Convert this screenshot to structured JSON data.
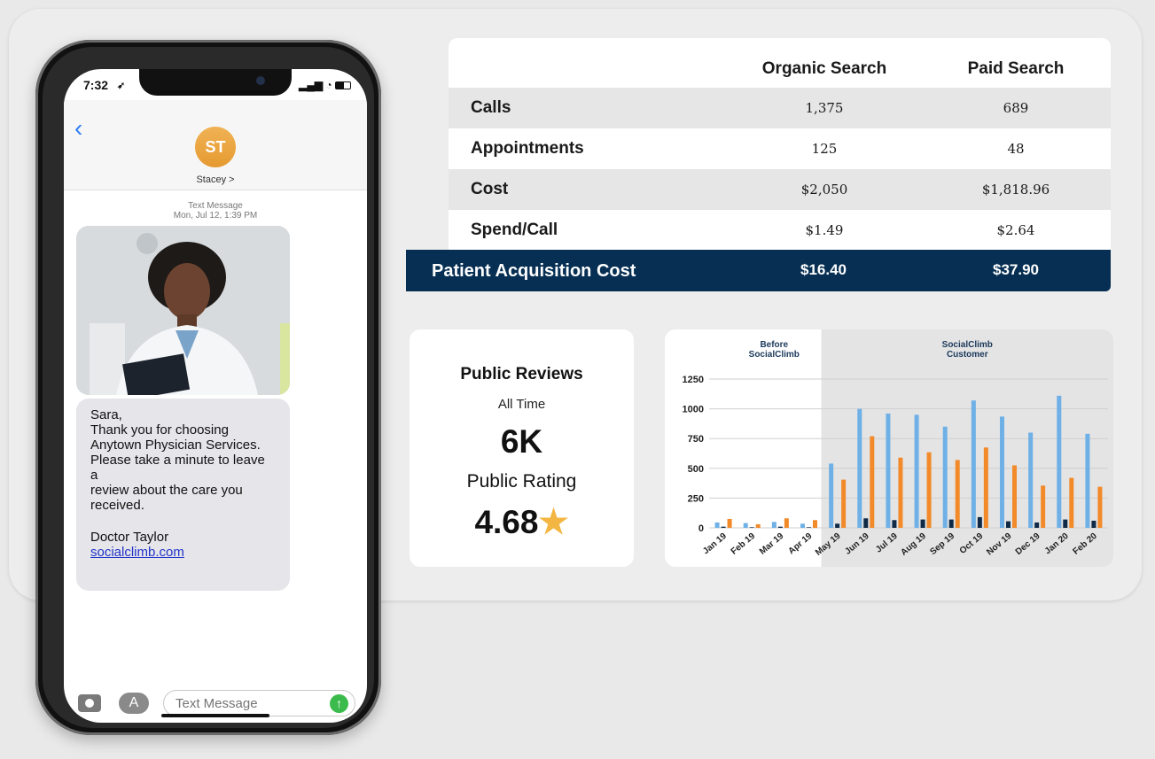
{
  "table": {
    "headers": [
      "",
      "Organic Search",
      "Paid Search"
    ],
    "rows": [
      {
        "label": "Calls",
        "organic": "1,375",
        "paid": "689"
      },
      {
        "label": "Appointments",
        "organic": "125",
        "paid": "48"
      },
      {
        "label": "Cost",
        "organic": "$2,050",
        "paid": "$1,818.96"
      },
      {
        "label": "Spend/Call",
        "organic": "$1.49",
        "paid": "$2.64"
      }
    ],
    "total": {
      "label": "Patient Acquisition Cost",
      "organic": "$16.40",
      "paid": "$37.90"
    }
  },
  "reviews": {
    "title": "Public Reviews",
    "subtitle": "All Time",
    "count": "6K",
    "rating_label": "Public Rating",
    "rating": "4.68"
  },
  "phone": {
    "time": "7:32",
    "contact_initials": "ST",
    "contact_name": "Stacey >",
    "timestamp_line1": "Text Message",
    "timestamp_line2": "Mon, Jul 12, 1:39 PM",
    "message": {
      "greeting": "Sara,",
      "line1": "Thank you for choosing",
      "line2": "Anytown Physician Services.",
      "line3": "Please take a minute to leave a",
      "line4": "review about the care you",
      "line5": "received.",
      "signature": "Doctor Taylor",
      "link": "socialclimb.com"
    },
    "input_placeholder": "Text Message"
  },
  "chart_data": {
    "type": "bar",
    "region_labels": {
      "before": [
        "Before",
        "SocialClimb"
      ],
      "after": [
        "SocialClimb",
        "Customer"
      ]
    },
    "categories": [
      "Jan 19",
      "Feb 19",
      "Mar 19",
      "Apr 19",
      "May 19",
      "Jun 19",
      "Jul 19",
      "Aug 19",
      "Sep 19",
      "Oct 19",
      "Nov 19",
      "Dec 19",
      "Jan 20",
      "Feb 20"
    ],
    "series": [
      {
        "color": "#6fb0e6",
        "values": [
          45,
          40,
          50,
          35,
          540,
          1000,
          960,
          950,
          850,
          1070,
          935,
          800,
          1110,
          790
        ]
      },
      {
        "color": "#0e2a47",
        "values": [
          10,
          5,
          10,
          5,
          35,
          80,
          65,
          70,
          70,
          90,
          55,
          45,
          70,
          60
        ]
      },
      {
        "color": "#f28a2a",
        "values": [
          75,
          30,
          80,
          65,
          405,
          770,
          590,
          635,
          570,
          675,
          525,
          355,
          420,
          345
        ]
      }
    ],
    "yticks": [
      0,
      250,
      500,
      750,
      1000,
      1250
    ],
    "ylim": [
      0,
      1250
    ],
    "after_start_index": 4,
    "grid": true
  }
}
